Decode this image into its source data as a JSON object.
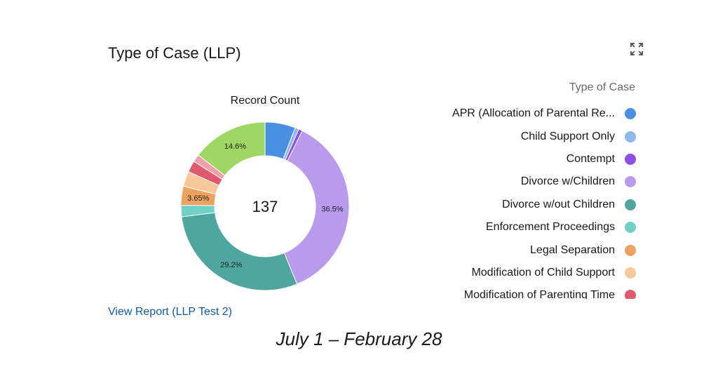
{
  "widget": {
    "title": "Type of Case (LLP)",
    "expand_icon": "expand-icon",
    "report_link": "View Report (LLP Test 2)"
  },
  "caption": "July 1 – February 28",
  "chart_data": {
    "type": "donut",
    "title": "Record Count",
    "center_total": "137",
    "legend_title": "Type of Case",
    "legend_placement": "right",
    "categories": [
      "APR (Allocation of Parental Re...",
      "Child Support Only",
      "Contempt",
      "Divorce w/Children",
      "Divorce w/out Children",
      "Enforcement Proceedings",
      "Legal Separation",
      "Modification of Child Support",
      "Modification of Parenting Time",
      "",
      ""
    ],
    "values": [
      8,
      1,
      1,
      50,
      40,
      3,
      5,
      4,
      3,
      2,
      20
    ],
    "colors": [
      "#4a90e2",
      "#8fb8ec",
      "#8e4fe6",
      "#b99aec",
      "#4fa69e",
      "#6fd0c6",
      "#eea260",
      "#f6c89a",
      "#e05a6c",
      "#efa0a8",
      "#9ed763"
    ],
    "data_labels": {
      "3": "36.5%",
      "4": "29.2%",
      "6": "3.65%",
      "10": "14.6%"
    }
  }
}
